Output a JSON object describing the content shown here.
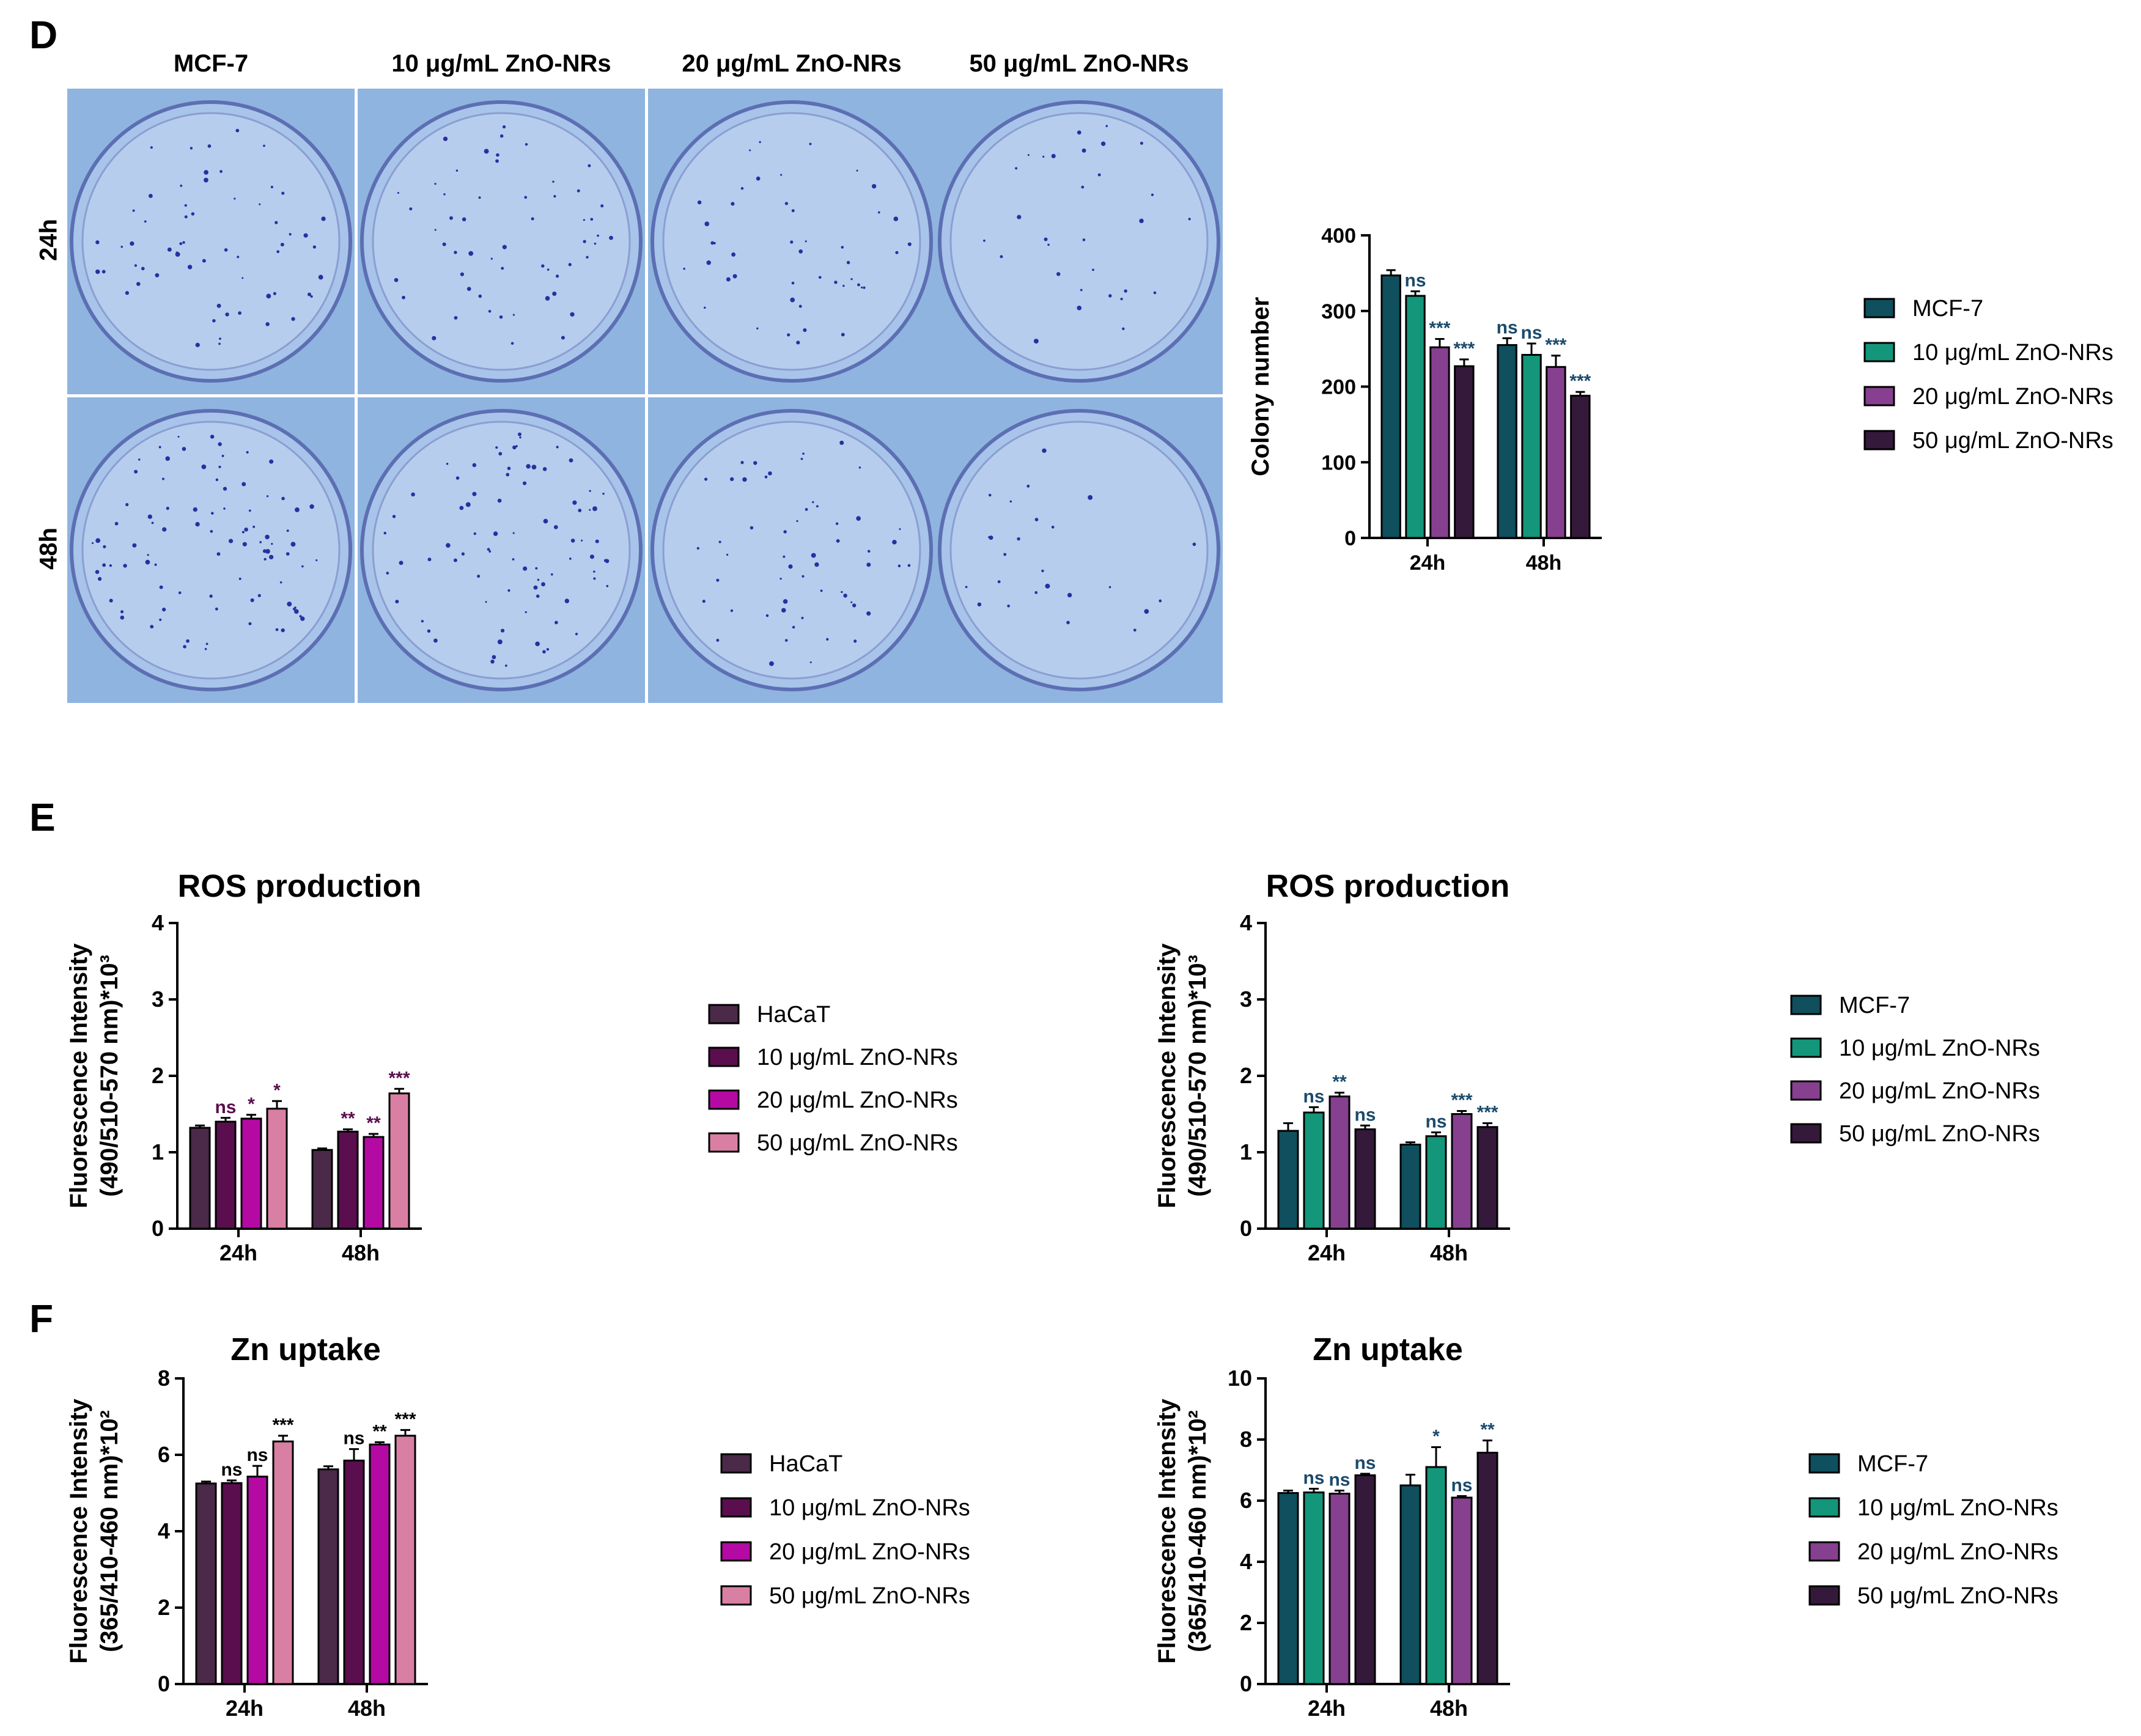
{
  "panels": {
    "D": "D",
    "E": "E",
    "F": "F"
  },
  "colony_images": {
    "column_headers": [
      "MCF-7",
      "10 μg/mL ZnO-NRs",
      "20 μg/mL ZnO-NRs",
      "50 μg/mL ZnO-NRs"
    ],
    "row_headers": [
      "24h",
      "48h"
    ]
  },
  "colors": {
    "mcf7": "#0f4f5e",
    "zno10_mcf": "#13967a",
    "zno20_mcf": "#86408f",
    "zno50_mcf": "#35193a",
    "hacat": "#4a2a48",
    "zno10_hacat": "#5a0e4e",
    "zno20_hacat": "#b40aa3",
    "zno50_hacat": "#d97fa3",
    "plate_bg": "#8fb4e0",
    "colony": "#2a2fa0"
  },
  "chart_data": [
    {
      "id": "colony",
      "type": "bar",
      "title": "",
      "xlabel": "",
      "ylabel": "Colony number",
      "ylim": [
        0,
        400
      ],
      "yticks": [
        "0",
        "100",
        "200",
        "300",
        "400"
      ],
      "categories": [
        "24h",
        "48h"
      ],
      "series": [
        {
          "name": "MCF-7",
          "values": [
            347,
            255
          ],
          "errors": [
            7,
            9
          ],
          "sig": [
            "",
            "ns"
          ]
        },
        {
          "name": "10 μg/mL ZnO-NRs",
          "values": [
            320,
            242
          ],
          "errors": [
            6,
            15
          ],
          "sig": [
            "ns",
            "ns"
          ]
        },
        {
          "name": "20 μg/mL ZnO-NRs",
          "values": [
            252,
            226
          ],
          "errors": [
            11,
            15
          ],
          "sig": [
            "***",
            "***"
          ]
        },
        {
          "name": "50 μg/mL ZnO-NRs",
          "values": [
            227,
            188
          ],
          "errors": [
            9,
            5
          ],
          "sig": [
            "***",
            "***"
          ]
        }
      ],
      "legend": "right"
    },
    {
      "id": "ros_hacat",
      "type": "bar",
      "title": "ROS production",
      "xlabel": "",
      "ylabel": [
        "Fluorescence Intensity",
        "(490/510-570 nm)*10³"
      ],
      "ylim": [
        0,
        4
      ],
      "yticks": [
        "0",
        "1",
        "2",
        "3",
        "4"
      ],
      "categories": [
        "24h",
        "48h"
      ],
      "series": [
        {
          "name": "HaCaT",
          "values": [
            1.32,
            1.03
          ],
          "errors": [
            0.03,
            0.02
          ],
          "sig": [
            "",
            ""
          ]
        },
        {
          "name": "10 μg/mL ZnO-NRs",
          "values": [
            1.4,
            1.27
          ],
          "errors": [
            0.05,
            0.03
          ],
          "sig": [
            "ns",
            "**"
          ]
        },
        {
          "name": "20 μg/mL ZnO-NRs",
          "values": [
            1.44,
            1.2
          ],
          "errors": [
            0.05,
            0.04
          ],
          "sig": [
            "*",
            "**"
          ]
        },
        {
          "name": "50 μg/mL ZnO-NRs",
          "values": [
            1.57,
            1.77
          ],
          "errors": [
            0.1,
            0.06
          ],
          "sig": [
            "*",
            "***"
          ]
        }
      ],
      "legend": "right"
    },
    {
      "id": "ros_mcf",
      "type": "bar",
      "title": "ROS production",
      "xlabel": "",
      "ylabel": [
        "Fluorescence Intensity",
        "(490/510-570 nm)*10³"
      ],
      "ylim": [
        0,
        4
      ],
      "yticks": [
        "0",
        "1",
        "2",
        "3",
        "4"
      ],
      "categories": [
        "24h",
        "48h"
      ],
      "series": [
        {
          "name": "MCF-7",
          "values": [
            1.28,
            1.1
          ],
          "errors": [
            0.1,
            0.03
          ],
          "sig": [
            "",
            ""
          ]
        },
        {
          "name": "10 μg/mL ZnO-NRs",
          "values": [
            1.52,
            1.21
          ],
          "errors": [
            0.07,
            0.05
          ],
          "sig": [
            "ns",
            "ns"
          ]
        },
        {
          "name": "20 μg/mL ZnO-NRs",
          "values": [
            1.73,
            1.5
          ],
          "errors": [
            0.05,
            0.04
          ],
          "sig": [
            "**",
            "***"
          ]
        },
        {
          "name": "50 μg/mL ZnO-NRs",
          "values": [
            1.3,
            1.33
          ],
          "errors": [
            0.05,
            0.05
          ],
          "sig": [
            "ns",
            "***"
          ]
        }
      ],
      "legend": "right"
    },
    {
      "id": "zn_hacat",
      "type": "bar",
      "title": "Zn uptake",
      "xlabel": "",
      "ylabel": [
        "Fluorescence Intensity",
        "(365/410-460 nm)*10²"
      ],
      "ylim": [
        0,
        8
      ],
      "yticks": [
        "0",
        "2",
        "4",
        "6",
        "8"
      ],
      "categories": [
        "24h",
        "48h"
      ],
      "series": [
        {
          "name": "HaCaT",
          "values": [
            5.25,
            5.62
          ],
          "errors": [
            0.05,
            0.08
          ],
          "sig": [
            "",
            ""
          ]
        },
        {
          "name": "10 μg/mL ZnO-NRs",
          "values": [
            5.26,
            5.85
          ],
          "errors": [
            0.07,
            0.3
          ],
          "sig": [
            "ns",
            "ns"
          ]
        },
        {
          "name": "20 μg/mL ZnO-NRs",
          "values": [
            5.43,
            6.27
          ],
          "errors": [
            0.28,
            0.06
          ],
          "sig": [
            "ns",
            "**"
          ]
        },
        {
          "name": "50 μg/mL ZnO-NRs",
          "values": [
            6.35,
            6.5
          ],
          "errors": [
            0.15,
            0.15
          ],
          "sig": [
            "***",
            "***"
          ]
        }
      ],
      "legend": "right"
    },
    {
      "id": "zn_mcf",
      "type": "bar",
      "title": "Zn uptake",
      "xlabel": "",
      "ylabel": [
        "Fluorescence Intensity",
        "(365/410-460 nm)*10²"
      ],
      "ylim": [
        0,
        10
      ],
      "yticks": [
        "0",
        "2",
        "4",
        "6",
        "8",
        "10"
      ],
      "categories": [
        "24h",
        "48h"
      ],
      "series": [
        {
          "name": "MCF-7",
          "values": [
            6.25,
            6.5
          ],
          "errors": [
            0.08,
            0.35
          ],
          "sig": [
            "",
            ""
          ]
        },
        {
          "name": "10 μg/mL ZnO-NRs",
          "values": [
            6.27,
            7.1
          ],
          "errors": [
            0.12,
            0.65
          ],
          "sig": [
            "ns",
            "*"
          ]
        },
        {
          "name": "20 μg/mL ZnO-NRs",
          "values": [
            6.23,
            6.1
          ],
          "errors": [
            0.1,
            0.05
          ],
          "sig": [
            "ns",
            "ns"
          ]
        },
        {
          "name": "50 μg/mL ZnO-NRs",
          "values": [
            6.83,
            7.57
          ],
          "errors": [
            0.05,
            0.4
          ],
          "sig": [
            "ns",
            "**"
          ]
        }
      ],
      "legend": "right"
    }
  ]
}
